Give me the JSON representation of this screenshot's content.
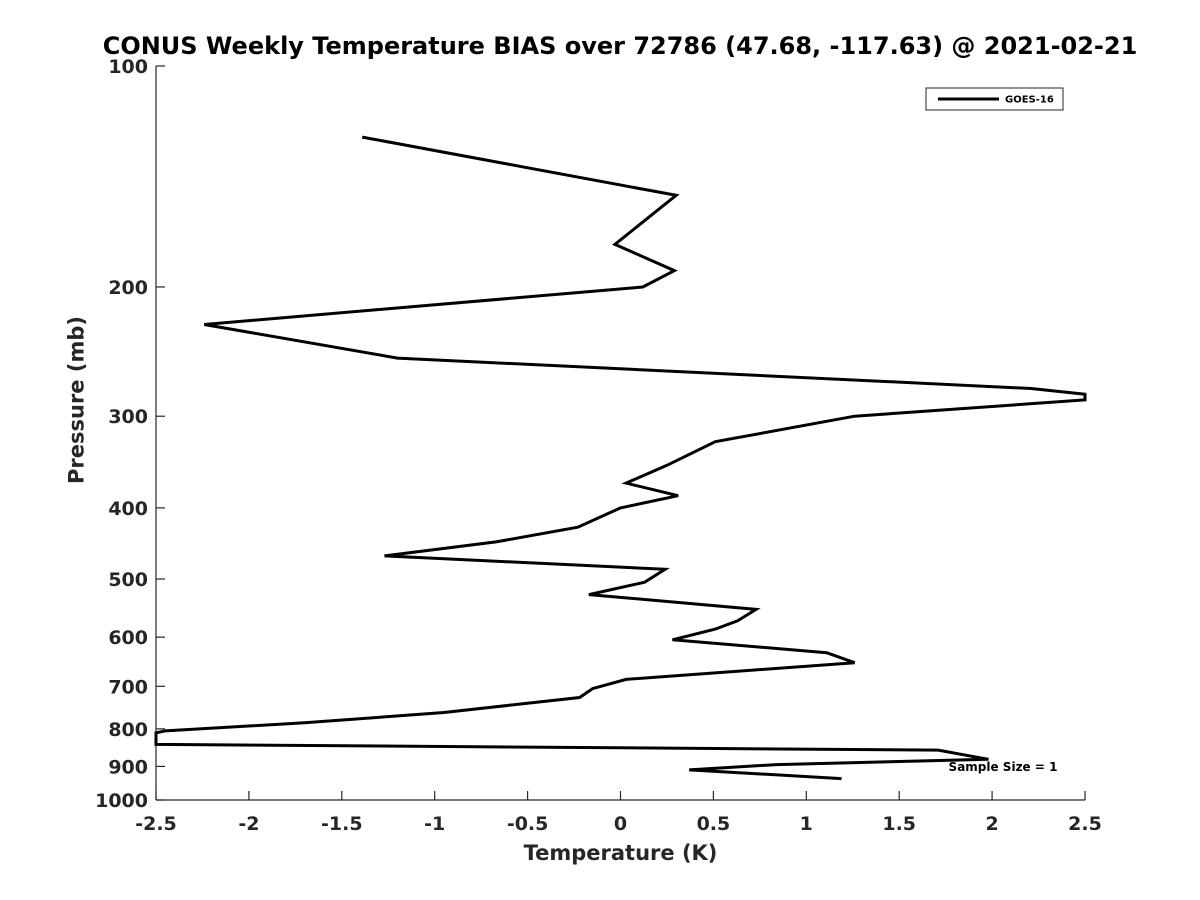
{
  "chart_data": {
    "type": "line",
    "title": "CONUS Weekly Temperature BIAS over 72786 (47.68, -117.63) @ 2021-02-21",
    "xlabel": "Temperature (K)",
    "ylabel": "Pressure (mb)",
    "xlim": [
      -2.5,
      2.5
    ],
    "ylim": [
      100,
      1000
    ],
    "y_scale": "log",
    "y_reversed": true,
    "grid": false,
    "legend_position": "top-right",
    "x_ticks": [
      "-2.5",
      "-2",
      "-1.5",
      "-1",
      "-0.5",
      "0",
      "0.5",
      "1",
      "1.5",
      "2",
      "2.5"
    ],
    "y_ticks": [
      "100",
      "200",
      "300",
      "400",
      "500",
      "600",
      "700",
      "800",
      "900",
      "1000"
    ],
    "annotation": "Sample Size = 1",
    "series": [
      {
        "name": "GOES-16",
        "color": "#000000",
        "points": [
          [
            -1.39,
            125
          ],
          [
            0.3,
            150
          ],
          [
            -0.03,
            175
          ],
          [
            0.29,
            190
          ],
          [
            0.12,
            200
          ],
          [
            -2.24,
            225
          ],
          [
            -1.2,
            250
          ],
          [
            2.21,
            275
          ],
          [
            2.5,
            280
          ],
          [
            2.5,
            285
          ],
          [
            1.26,
            300
          ],
          [
            0.51,
            325
          ],
          [
            0.25,
            350
          ],
          [
            0.03,
            370
          ],
          [
            0.31,
            385
          ],
          [
            0.0,
            400
          ],
          [
            -0.23,
            425
          ],
          [
            -0.67,
            445
          ],
          [
            -1.27,
            465
          ],
          [
            0.24,
            485
          ],
          [
            0.13,
            505
          ],
          [
            -0.17,
            525
          ],
          [
            0.73,
            550
          ],
          [
            0.63,
            570
          ],
          [
            0.51,
            585
          ],
          [
            0.28,
            605
          ],
          [
            1.11,
            630
          ],
          [
            1.26,
            650
          ],
          [
            0.03,
            685
          ],
          [
            -0.15,
            705
          ],
          [
            -0.22,
            725
          ],
          [
            -0.95,
            760
          ],
          [
            -1.7,
            785
          ],
          [
            -2.45,
            805
          ],
          [
            -2.5,
            810
          ],
          [
            -2.5,
            840
          ],
          [
            1.71,
            855
          ],
          [
            1.98,
            880
          ],
          [
            0.84,
            895
          ],
          [
            0.37,
            910
          ],
          [
            1.19,
            935
          ]
        ]
      }
    ]
  }
}
